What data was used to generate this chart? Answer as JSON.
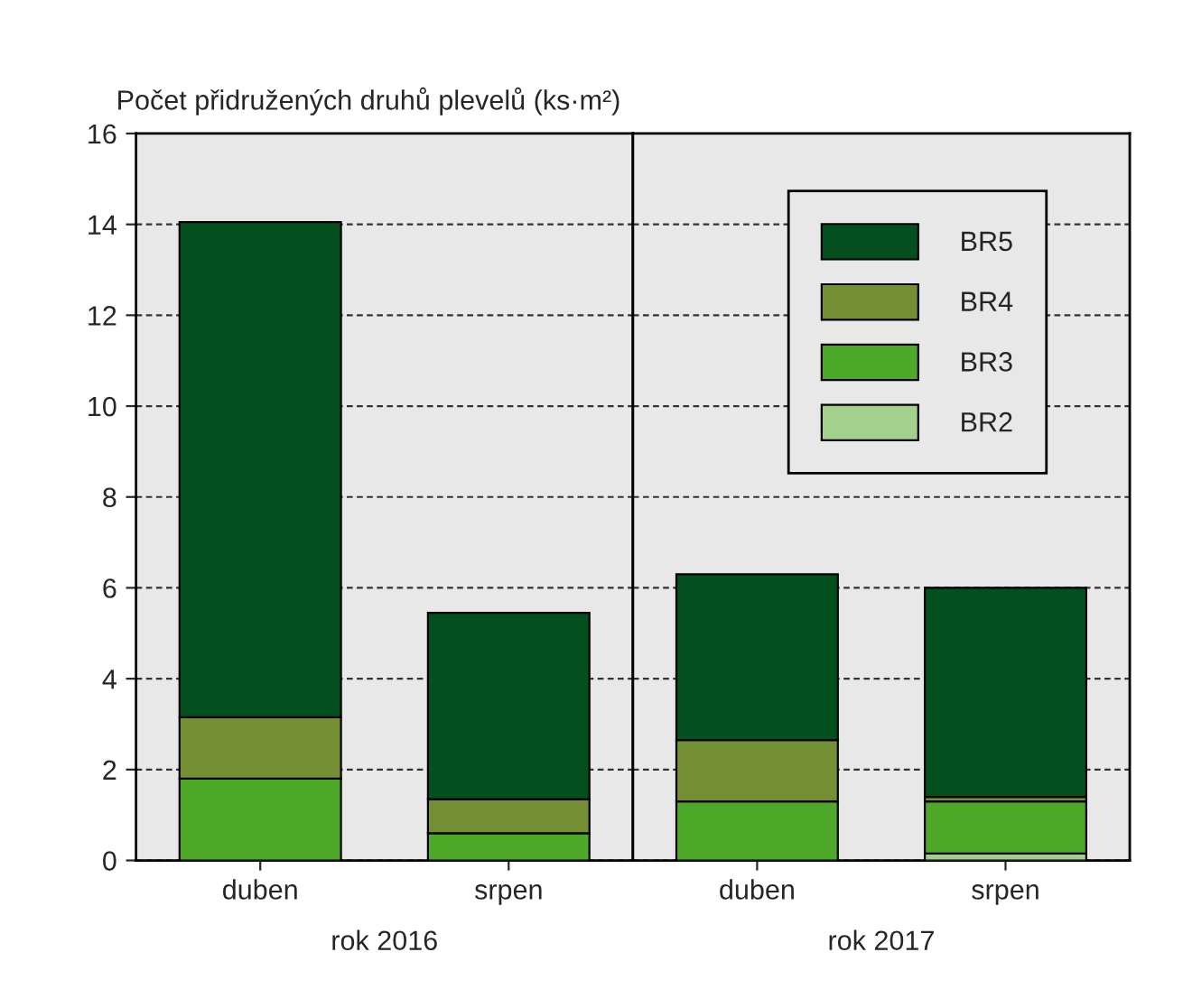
{
  "chart_data": [
    {
      "type": "bar",
      "stacked": true,
      "ylabel": "Počet přidružených druhů plevelů (ks·m²)",
      "xlabel": "rok 2016",
      "categories": [
        "duben",
        "srpen"
      ],
      "series": [
        {
          "color": "#a3d08a",
          "values": [
            null,
            null
          ]
        },
        {
          "color": "#4ea82a",
          "values": [
            1.8,
            0.6
          ]
        },
        {
          "color": "#758f35",
          "values": [
            1.35,
            0.75
          ]
        },
        {
          "color": "#03501e",
          "values": [
            10.9,
            4.1
          ]
        }
      ],
      "ylim": [
        0,
        16
      ],
      "yticks": [
        0,
        2,
        4,
        6,
        8,
        10,
        12,
        14,
        16
      ],
      "grid": "y"
    },
    {
      "type": "bar",
      "stacked": true,
      "xlabel": "rok 2017",
      "categories": [
        "duben",
        "srpen"
      ],
      "series": [
        {
          "name": "BR2",
          "color": "#a3d08a",
          "values": [
            null,
            0.15
          ]
        },
        {
          "name": "BR3",
          "color": "#4ea82a",
          "values": [
            1.3,
            1.15
          ]
        },
        {
          "name": "BR4",
          "color": "#758f35",
          "values": [
            1.35,
            0.1
          ]
        },
        {
          "name": "BR5",
          "color": "#03501e",
          "values": [
            3.65,
            4.6
          ]
        }
      ],
      "ylim": [
        0,
        16
      ],
      "tick_labels": "x",
      "grid": "y",
      "legend": "top right"
    }
  ]
}
